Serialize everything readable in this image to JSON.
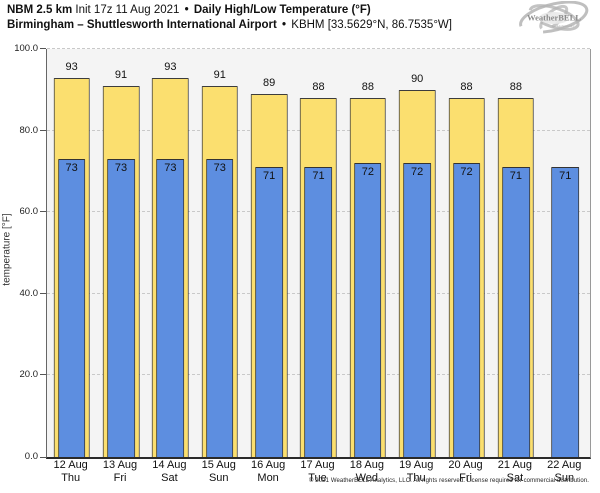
{
  "header": {
    "model": "NBM 2.5 km",
    "init": "Init 17z 11 Aug 2021",
    "sep": "•",
    "product": "Daily High/Low Temperature (°F)",
    "location": "Birmingham – Shuttlesworth International Airport",
    "station": "KBHM [33.5629°N, 86.7535°W]",
    "logo_text": "WeatherBELL",
    "logo_subtext": "Analytics LLC"
  },
  "chart_data": {
    "type": "bar",
    "title": "NBM 2.5 km Daily High/Low Temperature (°F) — Birmingham – Shuttlesworth International Airport (KBHM)",
    "categories": [
      "12 Aug",
      "13 Aug",
      "14 Aug",
      "15 Aug",
      "16 Aug",
      "17 Aug",
      "18 Aug",
      "19 Aug",
      "20 Aug",
      "21 Aug",
      "22 Aug"
    ],
    "weekdays": [
      "Thu",
      "Fri",
      "Sat",
      "Sun",
      "Mon",
      "Tue",
      "Wed",
      "Thu",
      "Fri",
      "Sat",
      "Sun"
    ],
    "series": [
      {
        "name": "Daily High",
        "color": "#fbdf6f",
        "values": [
          93,
          91,
          93,
          91,
          89,
          88,
          88,
          90,
          88,
          88,
          null
        ]
      },
      {
        "name": "Daily Low",
        "color": "#5d8ee0",
        "values": [
          73,
          73,
          73,
          73,
          71,
          71,
          72,
          72,
          72,
          71,
          71
        ]
      }
    ],
    "ylabel": "temperature [°F]",
    "ylim": [
      0,
      100
    ],
    "yticks": [
      0,
      20,
      40,
      60,
      80,
      100
    ],
    "ytick_labels": [
      "0.0",
      "20.0",
      "40.0",
      "60.0",
      "80.0",
      "100.0"
    ],
    "grid": "horizontal-dashed",
    "legend": "none",
    "plot_background": "#f4f4f4",
    "grid_color": "#c9c9c9"
  },
  "footer": {
    "copyright": "© 2021 WeatherBELL Analytics, LLC. All rights reserved. License required for commercial distribution."
  }
}
